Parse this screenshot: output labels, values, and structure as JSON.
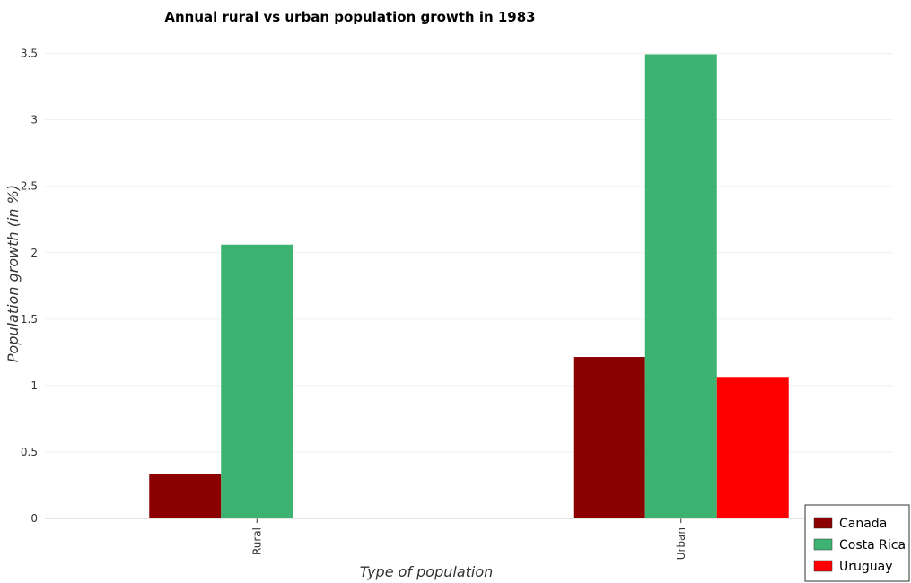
{
  "chart_data": {
    "type": "bar",
    "title": "Annual rural vs urban population growth in 1983",
    "xlabel": "Type of population",
    "ylabel": "Population growth (in %)",
    "categories": [
      "Rural",
      "Urban"
    ],
    "ylim": [
      0,
      3.7
    ],
    "yticks": [
      0,
      0.5,
      1,
      1.5,
      2,
      2.5,
      3,
      3.5
    ],
    "ytick_labels": [
      "0",
      "0.5",
      "1",
      "1.5",
      "2",
      "2.5",
      "3",
      "3.5"
    ],
    "grid": true,
    "legend_position": "bottom-right",
    "series": [
      {
        "name": "Canada",
        "color": "#8b0000",
        "values": [
          0.334,
          1.215
        ]
      },
      {
        "name": "Costa Rica",
        "color": "#3cb371",
        "values": [
          2.061,
          3.494
        ]
      },
      {
        "name": "Uruguay",
        "color": "#ff0000",
        "values": [
          0,
          1.065
        ]
      }
    ]
  }
}
